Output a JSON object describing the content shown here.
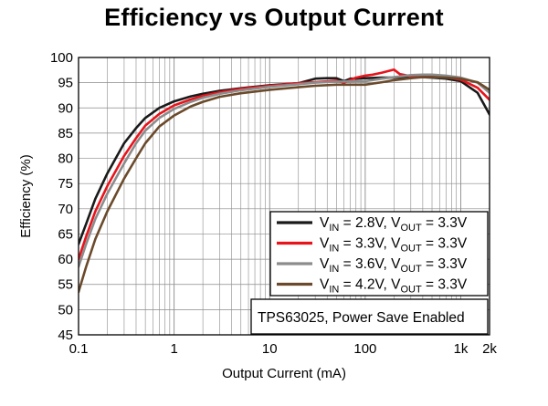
{
  "chart_data": {
    "type": "line",
    "title": "Efficiency vs Output Current",
    "xlabel": "Output Current (mA)",
    "ylabel": "Efficiency (%)",
    "x_scale": "log",
    "xlim": [
      0.1,
      2000
    ],
    "ylim": [
      45,
      100
    ],
    "grid": true,
    "x_ticks": [
      {
        "value": 0.1,
        "label": "0.1"
      },
      {
        "value": 1,
        "label": "1"
      },
      {
        "value": 10,
        "label": "10"
      },
      {
        "value": 100,
        "label": "100"
      },
      {
        "value": 1000,
        "label": "1k"
      },
      {
        "value": 2000,
        "label": "2k"
      }
    ],
    "y_ticks": [
      45,
      50,
      55,
      60,
      65,
      70,
      75,
      80,
      85,
      90,
      95,
      100
    ],
    "legend_position": "bottom-right",
    "annotation": "TPS63025, Power Save Enabled",
    "series": [
      {
        "name": "VIN = 2.8V, VOUT = 3.3V",
        "legend": {
          "v1": "V",
          "s1": "IN",
          "m1": " = 2.8V, ",
          "v2": "V",
          "s2": "OUT",
          "m2": " = 3.3V"
        },
        "color": "#1a1a1a",
        "x": [
          0.1,
          0.12,
          0.15,
          0.2,
          0.3,
          0.4,
          0.5,
          0.7,
          1,
          1.5,
          2,
          3,
          5,
          10,
          20,
          30,
          40,
          50,
          60,
          70,
          80,
          100,
          150,
          200,
          300,
          400,
          500,
          700,
          1000,
          1500,
          2000
        ],
        "y": [
          63,
          67,
          72,
          77,
          83,
          86,
          88,
          90,
          91.3,
          92.3,
          92.8,
          93.4,
          93.9,
          94.5,
          94.9,
          95.8,
          95.9,
          95.9,
          95.3,
          95.8,
          95.8,
          95.9,
          96.0,
          96.0,
          96.1,
          96.1,
          96.0,
          95.8,
          95.3,
          93.0,
          88.7
        ]
      },
      {
        "name": "VIN = 3.3V, VOUT = 3.3V",
        "legend": {
          "v1": "V",
          "s1": "IN",
          "m1": " = 3.3V, ",
          "v2": "V",
          "s2": "OUT",
          "m2": " = 3.3V"
        },
        "color": "#e8141c",
        "x": [
          0.1,
          0.12,
          0.15,
          0.2,
          0.3,
          0.4,
          0.5,
          0.7,
          1,
          1.5,
          2,
          3,
          5,
          10,
          20,
          30,
          50,
          60,
          80,
          100,
          120,
          150,
          200,
          230,
          300,
          400,
          500,
          700,
          1000,
          1500,
          2000
        ],
        "y": [
          60,
          64.5,
          69.5,
          74.5,
          80.5,
          84,
          86.5,
          88.8,
          90.5,
          91.7,
          92.4,
          93.1,
          93.8,
          94.4,
          94.9,
          95.1,
          95.4,
          95.0,
          96.0,
          96.4,
          96.6,
          97.0,
          97.6,
          96.7,
          96.3,
          96.4,
          96.4,
          96.1,
          95.6,
          94.0,
          91.6
        ]
      },
      {
        "name": "VIN = 3.6V, VOUT = 3.3V",
        "legend": {
          "v1": "V",
          "s1": "IN",
          "m1": " = 3.6V, ",
          "v2": "V",
          "s2": "OUT",
          "m2": " = 3.3V"
        },
        "color": "#8c8c8c",
        "x": [
          0.1,
          0.12,
          0.15,
          0.2,
          0.3,
          0.4,
          0.5,
          0.7,
          1,
          1.5,
          2,
          3,
          5,
          10,
          20,
          30,
          50,
          80,
          100,
          150,
          200,
          300,
          400,
          500,
          700,
          1000,
          1500,
          2000
        ],
        "y": [
          58.5,
          63,
          68,
          73,
          79,
          83,
          85.5,
          88,
          89.8,
          91.2,
          92,
          92.8,
          93.5,
          94.2,
          94.7,
          95.0,
          95.2,
          95.3,
          95.3,
          95.8,
          96.1,
          96.5,
          96.6,
          96.6,
          96.4,
          96.0,
          95.0,
          93.0
        ]
      },
      {
        "name": "VIN = 4.2V, VOUT = 3.3V",
        "legend": {
          "v1": "V",
          "s1": "IN",
          "m1": " = 4.2V, ",
          "v2": "V",
          "s2": "OUT",
          "m2": " = 3.3V"
        },
        "color": "#6b4a2b",
        "x": [
          0.1,
          0.12,
          0.15,
          0.2,
          0.3,
          0.4,
          0.5,
          0.7,
          1,
          1.5,
          2,
          3,
          5,
          10,
          20,
          30,
          50,
          80,
          100,
          150,
          200,
          300,
          400,
          500,
          700,
          1000,
          1500,
          2000
        ],
        "y": [
          53.5,
          58.5,
          64,
          69.5,
          76,
          80,
          83,
          86.3,
          88.5,
          90.3,
          91.2,
          92.2,
          92.9,
          93.6,
          94.1,
          94.4,
          94.6,
          94.6,
          94.6,
          95.1,
          95.5,
          95.9,
          96.1,
          96.1,
          96.0,
          95.8,
          95.1,
          93.6
        ]
      }
    ]
  }
}
